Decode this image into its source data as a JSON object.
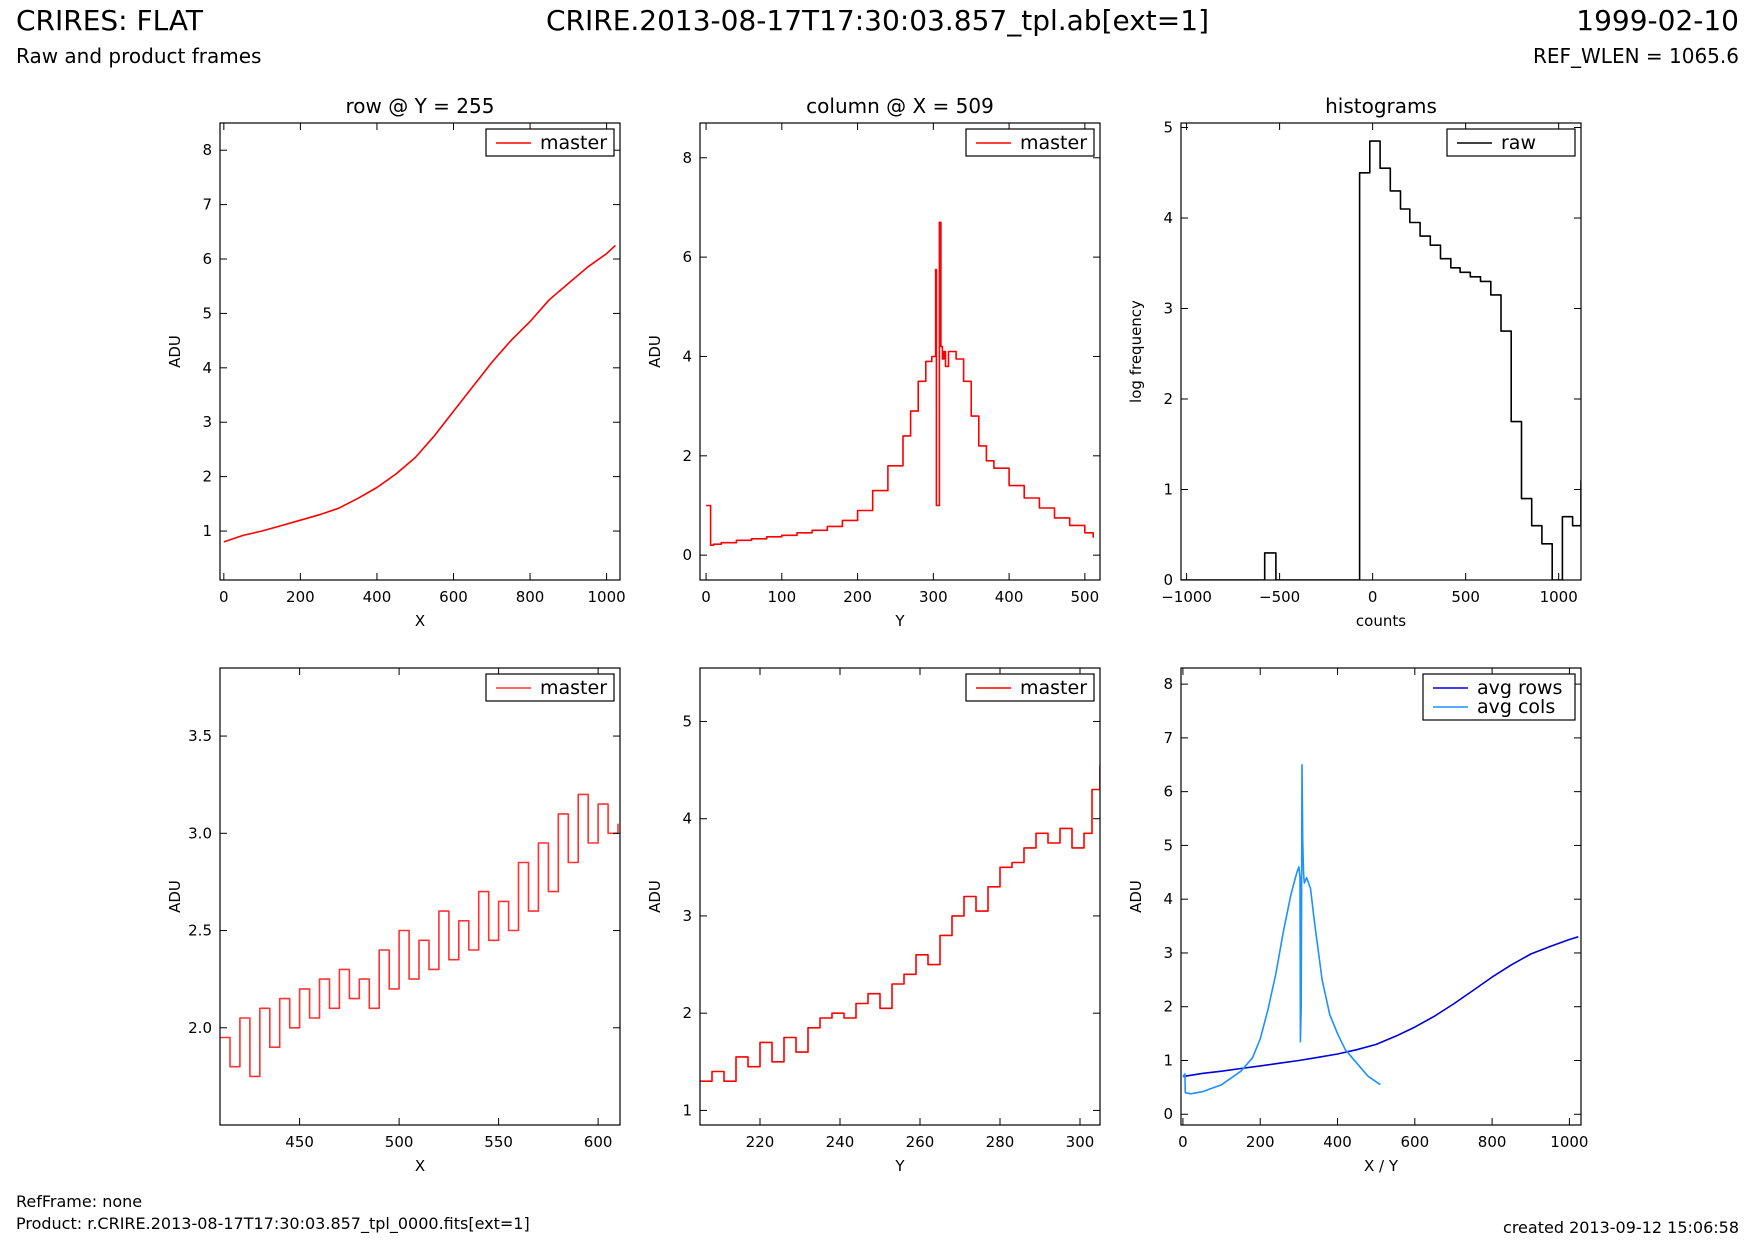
{
  "header": {
    "title": "CRIRES: FLAT",
    "subtitle": "Raw and product frames",
    "file": "CRIRE.2013-08-17T17:30:03.857_tpl.ab[ext=1]",
    "date": "1999-02-10",
    "ref_wlen": "REF_WLEN = 1065.6"
  },
  "footer": {
    "refframe": "RefFrame: none",
    "product": "Product: r.CRIRE.2013-08-17T17:30:03.857_tpl_0000.fits[ext=1]",
    "created": "created 2013-09-12 15:06:58"
  },
  "colors": {
    "master": "#ff0000",
    "master_zoom": "#ff3333",
    "raw": "#000000",
    "avg_rows": "#0000dd",
    "avg_cols": "#1e90ff"
  },
  "chart_data": [
    {
      "id": "row",
      "type": "line",
      "title": "row @ Y = 255",
      "xlabel": "X",
      "ylabel": "ADU",
      "xlim": [
        -10,
        1035
      ],
      "ylim": [
        0.1,
        8.5
      ],
      "xticks": [
        0,
        200,
        400,
        600,
        800,
        1000
      ],
      "yticks": [
        1,
        2,
        3,
        4,
        5,
        6,
        7,
        8
      ],
      "legend": {
        "position": "top-right",
        "entries": [
          "master"
        ]
      },
      "series": [
        {
          "name": "master",
          "color": "#ff0000",
          "step": false,
          "x": [
            0,
            50,
            100,
            150,
            200,
            250,
            300,
            350,
            400,
            450,
            500,
            550,
            600,
            650,
            700,
            750,
            800,
            850,
            900,
            950,
            1000,
            1023
          ],
          "y": [
            0.8,
            0.92,
            1.0,
            1.1,
            1.2,
            1.3,
            1.42,
            1.6,
            1.8,
            2.05,
            2.35,
            2.75,
            3.2,
            3.65,
            4.1,
            4.5,
            4.85,
            5.25,
            5.55,
            5.85,
            6.1,
            6.25
          ]
        }
      ]
    },
    {
      "id": "column",
      "type": "line",
      "title": "column @ X = 509",
      "xlabel": "Y",
      "ylabel": "ADU",
      "xlim": [
        -8,
        520
      ],
      "ylim": [
        -0.5,
        8.7
      ],
      "xticks": [
        0,
        100,
        200,
        300,
        400,
        500
      ],
      "yticks": [
        0,
        2,
        4,
        6,
        8
      ],
      "legend": {
        "position": "top-right",
        "entries": [
          "master"
        ]
      },
      "series": [
        {
          "name": "master",
          "color": "#ff0000",
          "step": true,
          "x": [
            0,
            5,
            6,
            10,
            20,
            40,
            60,
            80,
            100,
            120,
            140,
            160,
            180,
            200,
            220,
            240,
            260,
            270,
            280,
            290,
            298,
            303,
            304,
            306,
            308,
            310,
            312,
            314,
            316,
            320,
            330,
            340,
            350,
            360,
            370,
            380,
            400,
            420,
            440,
            460,
            480,
            500,
            511
          ],
          "y": [
            1.0,
            1.0,
            0.2,
            0.22,
            0.25,
            0.3,
            0.33,
            0.37,
            0.4,
            0.45,
            0.5,
            0.58,
            0.7,
            0.9,
            1.3,
            1.8,
            2.4,
            2.9,
            3.5,
            3.9,
            4.0,
            5.75,
            1.0,
            1.0,
            6.7,
            4.2,
            3.95,
            4.1,
            3.8,
            4.1,
            3.95,
            3.5,
            2.8,
            2.2,
            1.9,
            1.75,
            1.4,
            1.15,
            0.95,
            0.75,
            0.6,
            0.45,
            0.35
          ]
        }
      ]
    },
    {
      "id": "histograms",
      "type": "line",
      "title": "histograms",
      "xlabel": "counts",
      "ylabel": "log frequency",
      "xlim": [
        -1030,
        1120
      ],
      "ylim": [
        0,
        5.05
      ],
      "xticks": [
        -1000,
        -500,
        0,
        500,
        1000
      ],
      "xtick_labels": [
        "−1000",
        "−500",
        "0",
        "500",
        "1000"
      ],
      "yticks": [
        0,
        1,
        2,
        3,
        4,
        5
      ],
      "legend": {
        "position": "top-right",
        "entries": [
          "raw"
        ]
      },
      "series": [
        {
          "name": "raw",
          "color": "#000000",
          "step": true,
          "x": [
            -1030,
            -580,
            -520,
            -70,
            -15,
            40,
            95,
            150,
            200,
            255,
            310,
            365,
            420,
            470,
            525,
            580,
            635,
            690,
            745,
            800,
            855,
            910,
            965,
            1020,
            1075,
            1120
          ],
          "y": [
            0,
            0.3,
            0,
            4.5,
            4.85,
            4.55,
            4.3,
            4.1,
            3.95,
            3.8,
            3.7,
            3.55,
            3.45,
            3.4,
            3.35,
            3.3,
            3.15,
            2.75,
            1.75,
            0.9,
            0.6,
            0.4,
            0.0,
            0.7,
            0.6,
            1.1
          ]
        }
      ]
    },
    {
      "id": "row-zoom",
      "type": "line",
      "xlabel": "X",
      "ylabel": "ADU",
      "xlim": [
        410,
        611
      ],
      "ylim": [
        1.5,
        3.85
      ],
      "xticks": [
        450,
        500,
        550,
        600
      ],
      "yticks": [
        2.0,
        2.5,
        3.0,
        3.5
      ],
      "ytick_labels": [
        "2.0",
        "2.5",
        "3.0",
        "3.5"
      ],
      "legend": {
        "position": "top-right",
        "entries": [
          "master"
        ]
      },
      "series": [
        {
          "name": "master",
          "color": "#ff3333",
          "step": true,
          "x": [
            410,
            415,
            420,
            425,
            430,
            435,
            440,
            445,
            450,
            455,
            460,
            465,
            470,
            475,
            480,
            485,
            490,
            495,
            500,
            505,
            510,
            515,
            520,
            525,
            530,
            535,
            540,
            545,
            550,
            555,
            560,
            565,
            570,
            575,
            580,
            585,
            590,
            595,
            600,
            605,
            610
          ],
          "y": [
            1.95,
            1.8,
            2.05,
            1.75,
            2.1,
            1.9,
            2.15,
            2.0,
            2.2,
            2.05,
            2.25,
            2.1,
            2.3,
            2.15,
            2.25,
            2.1,
            2.4,
            2.2,
            2.5,
            2.25,
            2.45,
            2.3,
            2.6,
            2.35,
            2.55,
            2.4,
            2.7,
            2.45,
            2.65,
            2.5,
            2.85,
            2.6,
            2.95,
            2.7,
            3.1,
            2.85,
            3.2,
            2.95,
            3.15,
            3.0,
            3.05
          ]
        }
      ]
    },
    {
      "id": "column-zoom",
      "type": "line",
      "xlabel": "Y",
      "ylabel": "ADU",
      "xlim": [
        205,
        305
      ],
      "ylim": [
        0.85,
        5.55
      ],
      "xticks": [
        220,
        240,
        260,
        280,
        300
      ],
      "yticks": [
        1,
        2,
        3,
        4,
        5
      ],
      "legend": {
        "position": "top-right",
        "entries": [
          "master"
        ]
      },
      "series": [
        {
          "name": "master",
          "color": "#ff0000",
          "step": true,
          "x": [
            205,
            208,
            211,
            214,
            217,
            220,
            223,
            226,
            229,
            232,
            235,
            238,
            241,
            244,
            247,
            250,
            253,
            256,
            259,
            262,
            265,
            268,
            271,
            274,
            277,
            280,
            283,
            286,
            289,
            292,
            295,
            298,
            301,
            303,
            305
          ],
          "y": [
            1.3,
            1.4,
            1.3,
            1.55,
            1.45,
            1.7,
            1.5,
            1.75,
            1.6,
            1.85,
            1.95,
            2.0,
            1.95,
            2.1,
            2.2,
            2.05,
            2.3,
            2.4,
            2.6,
            2.5,
            2.8,
            3.0,
            3.2,
            3.05,
            3.3,
            3.5,
            3.55,
            3.7,
            3.85,
            3.75,
            3.9,
            3.7,
            3.85,
            4.3,
            4.55
          ]
        }
      ]
    },
    {
      "id": "averages",
      "type": "line",
      "xlabel": "X / Y",
      "ylabel": "ADU",
      "xlim": [
        -5,
        1030
      ],
      "ylim": [
        -0.2,
        8.3
      ],
      "xticks": [
        0,
        200,
        400,
        600,
        800,
        1000
      ],
      "yticks": [
        0,
        1,
        2,
        3,
        4,
        5,
        6,
        7,
        8
      ],
      "legend": {
        "position": "top-right",
        "entries": [
          "avg rows",
          "avg cols"
        ]
      },
      "series": [
        {
          "name": "avg rows",
          "color": "#0000dd",
          "step": false,
          "x": [
            0,
            50,
            100,
            150,
            200,
            250,
            300,
            350,
            400,
            450,
            500,
            550,
            600,
            650,
            700,
            750,
            800,
            850,
            900,
            950,
            1000,
            1023
          ],
          "y": [
            0.7,
            0.76,
            0.8,
            0.85,
            0.9,
            0.95,
            1.0,
            1.06,
            1.12,
            1.2,
            1.3,
            1.45,
            1.62,
            1.82,
            2.05,
            2.3,
            2.55,
            2.78,
            2.98,
            3.12,
            3.25,
            3.3
          ]
        },
        {
          "name": "avg cols",
          "color": "#1e90ff",
          "step": false,
          "x": [
            0,
            5,
            6,
            20,
            50,
            100,
            150,
            180,
            200,
            220,
            240,
            260,
            280,
            295,
            300,
            303,
            304,
            306,
            308,
            310,
            312,
            314,
            320,
            330,
            340,
            360,
            380,
            400,
            420,
            450,
            480,
            511
          ],
          "y": [
            0.7,
            0.75,
            0.4,
            0.38,
            0.42,
            0.55,
            0.8,
            1.05,
            1.4,
            1.95,
            2.6,
            3.4,
            4.1,
            4.5,
            4.6,
            4.4,
            1.35,
            2.0,
            6.5,
            5.1,
            4.5,
            4.3,
            4.4,
            4.2,
            3.6,
            2.5,
            1.85,
            1.5,
            1.2,
            0.95,
            0.7,
            0.55
          ]
        }
      ]
    }
  ]
}
